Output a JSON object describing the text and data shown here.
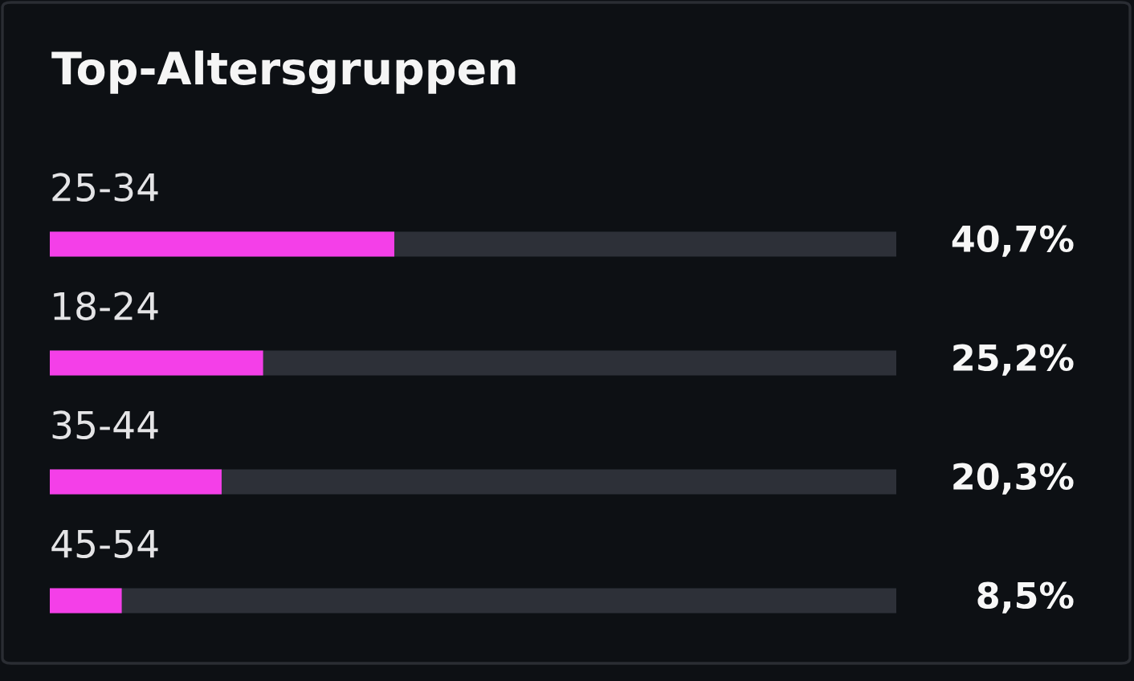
{
  "chart_data": {
    "type": "bar",
    "orientation": "horizontal",
    "title": "Top-Altersgruppen",
    "categories": [
      "25-34",
      "18-24",
      "35-44",
      "45-54"
    ],
    "values": [
      40.7,
      25.2,
      20.3,
      8.5
    ],
    "value_labels": [
      "40,7%",
      "25,2%",
      "20,3%",
      "8,5%"
    ],
    "color": "#f43fe8",
    "xlim": [
      0,
      100
    ],
    "tick_labels": false,
    "grid": false,
    "legend": false
  }
}
